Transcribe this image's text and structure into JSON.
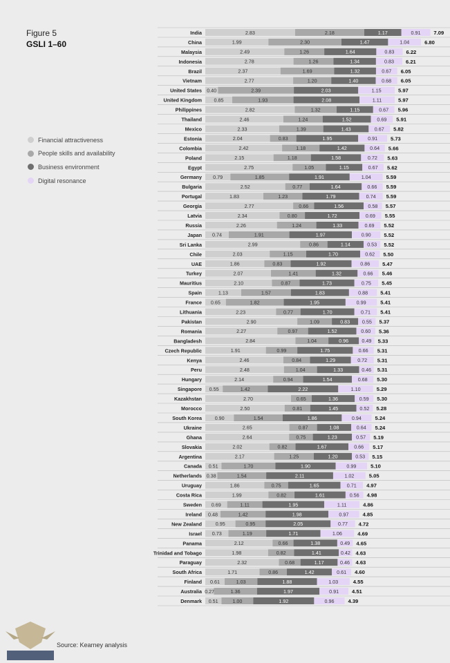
{
  "figure_label": "Figure 5",
  "figure_title": "GSLI 1–60",
  "source": "Source: Kearney analysis",
  "watermark_text": "ARAB DEFENSE FORUM",
  "chart_data": {
    "type": "bar",
    "stacked": true,
    "orientation": "horizontal",
    "legend_position": "left",
    "series": [
      {
        "name": "Financial attractiveness",
        "color": "#cfcfcf",
        "label_color": "#333333"
      },
      {
        "name": "People skills and availability",
        "color": "#a8a8a8",
        "label_color": "#333333"
      },
      {
        "name": "Business environment",
        "color": "#6e6e6e",
        "label_color": "#ffffff"
      },
      {
        "name": "Digital resonance",
        "color": "#e4d5f7",
        "label_color": "#333333"
      }
    ],
    "rows": [
      {
        "country": "India",
        "values": [
          2.83,
          2.18,
          1.17,
          0.91
        ],
        "total": "7.09"
      },
      {
        "country": "China",
        "values": [
          1.99,
          2.3,
          1.47,
          1.04
        ],
        "total": "6.80"
      },
      {
        "country": "Malaysia",
        "values": [
          2.49,
          1.26,
          1.64,
          0.83
        ],
        "total": "6.22"
      },
      {
        "country": "Indonesia",
        "values": [
          2.78,
          1.26,
          1.34,
          0.83
        ],
        "total": "6.21"
      },
      {
        "country": "Brazil",
        "values": [
          2.37,
          1.69,
          1.32,
          0.67
        ],
        "total": "6.05"
      },
      {
        "country": "Vietnam",
        "values": [
          2.77,
          1.2,
          1.4,
          0.68
        ],
        "total": "6.05"
      },
      {
        "country": "United States",
        "values": [
          0.4,
          2.39,
          2.03,
          1.15
        ],
        "total": "5.97"
      },
      {
        "country": "United Kingdom",
        "values": [
          0.85,
          1.93,
          2.08,
          1.11
        ],
        "total": "5.97"
      },
      {
        "country": "Philippines",
        "values": [
          2.82,
          1.32,
          1.15,
          0.67
        ],
        "total": "5.96"
      },
      {
        "country": "Thailand",
        "values": [
          2.46,
          1.24,
          1.52,
          0.69
        ],
        "total": "5.91"
      },
      {
        "country": "Mexico",
        "values": [
          2.33,
          1.39,
          1.43,
          0.67
        ],
        "total": "5.82"
      },
      {
        "country": "Estonia",
        "values": [
          2.04,
          0.83,
          1.95,
          0.91
        ],
        "total": "5.73"
      },
      {
        "country": "Colombia",
        "values": [
          2.42,
          1.18,
          1.42,
          0.64
        ],
        "total": "5.66"
      },
      {
        "country": "Poland",
        "values": [
          2.15,
          1.18,
          1.58,
          0.72
        ],
        "total": "5.63"
      },
      {
        "country": "Egypt",
        "values": [
          2.75,
          1.05,
          1.15,
          0.67
        ],
        "total": "5.62"
      },
      {
        "country": "Germany",
        "values": [
          0.79,
          1.85,
          1.91,
          1.04
        ],
        "total": "5.59"
      },
      {
        "country": "Bulgaria",
        "values": [
          2.52,
          0.77,
          1.64,
          0.66
        ],
        "total": "5.59"
      },
      {
        "country": "Portugal",
        "values": [
          1.83,
          1.23,
          1.79,
          0.74
        ],
        "total": "5.59"
      },
      {
        "country": "Georgia",
        "values": [
          2.77,
          0.66,
          1.56,
          0.58
        ],
        "total": "5.57"
      },
      {
        "country": "Latvia",
        "values": [
          2.34,
          0.8,
          1.72,
          0.69
        ],
        "total": "5.55"
      },
      {
        "country": "Russia",
        "values": [
          2.26,
          1.24,
          1.33,
          0.69
        ],
        "total": "5.52"
      },
      {
        "country": "Japan",
        "values": [
          0.74,
          1.91,
          1.97,
          0.9
        ],
        "total": "5.52"
      },
      {
        "country": "Sri Lanka",
        "values": [
          2.99,
          0.86,
          1.14,
          0.53
        ],
        "total": "5.52"
      },
      {
        "country": "Chile",
        "values": [
          2.03,
          1.15,
          1.7,
          0.62
        ],
        "total": "5.50"
      },
      {
        "country": "UAE",
        "values": [
          1.86,
          0.83,
          1.92,
          0.86
        ],
        "total": "5.47"
      },
      {
        "country": "Turkey",
        "values": [
          2.07,
          1.41,
          1.32,
          0.66
        ],
        "total": "5.46"
      },
      {
        "country": "Mauritius",
        "values": [
          2.1,
          0.87,
          1.73,
          0.75
        ],
        "total": "5.45"
      },
      {
        "country": "Spain",
        "values": [
          1.13,
          1.57,
          1.83,
          0.88
        ],
        "total": "5.41"
      },
      {
        "country": "France",
        "values": [
          0.65,
          1.82,
          1.95,
          0.99
        ],
        "total": "5.41"
      },
      {
        "country": "Lithuania",
        "values": [
          2.23,
          0.77,
          1.7,
          0.71
        ],
        "total": "5.41"
      },
      {
        "country": "Pakistan",
        "values": [
          2.9,
          1.09,
          0.83,
          0.55
        ],
        "total": "5.37"
      },
      {
        "country": "Romania",
        "values": [
          2.27,
          0.97,
          1.52,
          0.6
        ],
        "total": "5.36"
      },
      {
        "country": "Bangladesh",
        "values": [
          2.84,
          1.04,
          0.96,
          0.49
        ],
        "total": "5.33"
      },
      {
        "country": "Czech Republic",
        "values": [
          1.91,
          0.99,
          1.75,
          0.66
        ],
        "total": "5.31"
      },
      {
        "country": "Kenya",
        "values": [
          2.46,
          0.84,
          1.29,
          0.72
        ],
        "total": "5.31"
      },
      {
        "country": "Peru",
        "values": [
          2.48,
          1.04,
          1.33,
          0.46
        ],
        "total": "5.31"
      },
      {
        "country": "Hungary",
        "values": [
          2.14,
          0.94,
          1.54,
          0.68
        ],
        "total": "5.30"
      },
      {
        "country": "Singapore",
        "values": [
          0.55,
          1.42,
          2.22,
          1.1
        ],
        "total": "5.29"
      },
      {
        "country": "Kazakhstan",
        "values": [
          2.7,
          0.65,
          1.36,
          0.59
        ],
        "total": "5.30"
      },
      {
        "country": "Morocco",
        "values": [
          2.5,
          0.81,
          1.45,
          0.52
        ],
        "total": "5.28"
      },
      {
        "country": "South Korea",
        "values": [
          0.9,
          1.54,
          1.86,
          0.94
        ],
        "total": "5.24"
      },
      {
        "country": "Ukraine",
        "values": [
          2.65,
          0.87,
          1.08,
          0.64
        ],
        "total": "5.24"
      },
      {
        "country": "Ghana",
        "values": [
          2.64,
          0.75,
          1.23,
          0.57
        ],
        "total": "5.19"
      },
      {
        "country": "Slovakia",
        "values": [
          2.02,
          0.82,
          1.67,
          0.66
        ],
        "total": "5.17"
      },
      {
        "country": "Argentina",
        "values": [
          2.17,
          1.25,
          1.2,
          0.53
        ],
        "total": "5.15"
      },
      {
        "country": "Canada",
        "values": [
          0.51,
          1.7,
          1.9,
          0.99
        ],
        "total": "5.10"
      },
      {
        "country": "Netherlands",
        "values": [
          0.38,
          1.54,
          2.11,
          1.02
        ],
        "total": "5.05"
      },
      {
        "country": "Uruguay",
        "values": [
          1.86,
          0.75,
          1.65,
          0.71
        ],
        "total": "4.97"
      },
      {
        "country": "Costa Rica",
        "values": [
          1.99,
          0.82,
          1.61,
          0.56
        ],
        "total": "4.98"
      },
      {
        "country": "Sweden",
        "values": [
          0.69,
          1.11,
          1.95,
          1.11
        ],
        "total": "4.86"
      },
      {
        "country": "Ireland",
        "values": [
          0.48,
          1.42,
          1.98,
          0.97
        ],
        "total": "4.85"
      },
      {
        "country": "New Zealand",
        "values": [
          0.95,
          0.95,
          2.05,
          0.77
        ],
        "total": "4.72"
      },
      {
        "country": "Israel",
        "values": [
          0.73,
          1.19,
          1.71,
          1.06
        ],
        "total": "4.69"
      },
      {
        "country": "Panama",
        "values": [
          2.12,
          0.66,
          1.38,
          0.49
        ],
        "total": "4.65"
      },
      {
        "country": "Trinidad and Tobago",
        "values": [
          1.98,
          0.82,
          1.41,
          0.42
        ],
        "total": "4.63"
      },
      {
        "country": "Paraguay",
        "values": [
          2.32,
          0.68,
          1.17,
          0.46
        ],
        "total": "4.63"
      },
      {
        "country": "South Africa",
        "values": [
          1.71,
          0.86,
          1.42,
          0.61
        ],
        "total": "4.60"
      },
      {
        "country": "Finland",
        "values": [
          0.61,
          1.03,
          1.88,
          1.03
        ],
        "total": "4.55"
      },
      {
        "country": "Australia",
        "values": [
          0.27,
          1.36,
          1.97,
          0.91
        ],
        "total": "4.51"
      },
      {
        "country": "Denmark",
        "values": [
          0.51,
          1.0,
          1.92,
          0.96
        ],
        "total": "4.39"
      }
    ]
  }
}
